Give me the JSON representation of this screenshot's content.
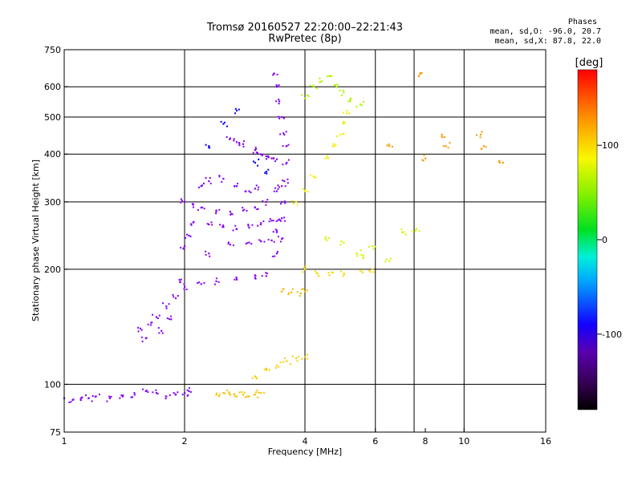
{
  "chart_data": {
    "type": "scatter",
    "title": "Tromsø 20160527 22:20:00–22:21:43",
    "subtitle": "RwPretec (8p)",
    "xlabel": "Frequency [MHz]",
    "ylabel": "Stationary phase Virtual Height [km]",
    "x_scale": "log",
    "y_scale": "log",
    "xlim": [
      1,
      16
    ],
    "ylim": [
      75,
      750
    ],
    "x_ticks": [
      1,
      2,
      4,
      6,
      8,
      10,
      16
    ],
    "x_tick_labels": [
      "1",
      "2",
      "4",
      "6",
      "8",
      "10",
      "16"
    ],
    "x_gridlines": [
      2,
      4,
      6,
      7.5,
      10
    ],
    "y_ticks": [
      75,
      100,
      200,
      300,
      400,
      500,
      600,
      750
    ],
    "y_tick_labels": [
      "75",
      "100",
      "200",
      "300",
      "400",
      "500",
      "600",
      "750"
    ],
    "y_gridlines": [
      100,
      200,
      300,
      400,
      500,
      600
    ],
    "grid": true,
    "colorbar": {
      "label": "[deg]",
      "range": [
        -180,
        180
      ],
      "ticks": [
        100,
        0,
        -100
      ],
      "tick_labels": [
        "100",
        "0",
        "-100"
      ]
    },
    "stats": {
      "header": "Phases",
      "o_mode": "mean, sd,O: -96.0, 20.7",
      "x_mode": "mean, sd,X:  87.8, 22.0"
    },
    "series": [
      {
        "mode": "O",
        "phase_deg": -110,
        "points": [
          [
            1.0,
            92
          ],
          [
            1.05,
            91
          ],
          [
            1.1,
            91
          ],
          [
            1.15,
            92
          ],
          [
            1.2,
            93
          ],
          [
            1.3,
            92
          ],
          [
            1.4,
            93
          ],
          [
            1.5,
            94
          ],
          [
            1.6,
            96
          ],
          [
            1.7,
            95
          ],
          [
            1.8,
            93
          ],
          [
            1.9,
            94
          ],
          [
            2.0,
            95
          ],
          [
            2.05,
            96
          ]
        ]
      },
      {
        "mode": "O",
        "phase_deg": -105,
        "points": [
          [
            1.55,
            140
          ],
          [
            1.6,
            132
          ],
          [
            1.65,
            145
          ],
          [
            1.7,
            150
          ],
          [
            1.75,
            138
          ],
          [
            1.8,
            160
          ],
          [
            1.85,
            148
          ],
          [
            1.9,
            168
          ],
          [
            1.95,
            185
          ],
          [
            2.0,
            230
          ],
          [
            2.05,
            245
          ]
        ]
      },
      {
        "mode": "O",
        "phase_deg": -115,
        "points": [
          [
            2.0,
            300
          ],
          [
            2.1,
            295
          ],
          [
            2.2,
            290
          ],
          [
            2.4,
            285
          ],
          [
            2.6,
            283
          ],
          [
            2.8,
            285
          ],
          [
            3.0,
            290
          ],
          [
            3.2,
            300
          ],
          [
            3.4,
            320
          ],
          [
            3.5,
            330
          ]
        ]
      },
      {
        "mode": "O",
        "phase_deg": -120,
        "points": [
          [
            2.1,
            265
          ],
          [
            2.3,
            262
          ],
          [
            2.5,
            258
          ],
          [
            2.7,
            255
          ],
          [
            2.9,
            257
          ],
          [
            3.1,
            262
          ],
          [
            3.3,
            268
          ],
          [
            3.5,
            272
          ]
        ]
      },
      {
        "mode": "O",
        "phase_deg": -115,
        "points": [
          [
            2.3,
            220
          ],
          [
            2.6,
            232
          ],
          [
            2.9,
            235
          ],
          [
            3.1,
            237
          ],
          [
            3.3,
            238
          ],
          [
            3.5,
            240
          ]
        ]
      },
      {
        "mode": "O",
        "phase_deg": -120,
        "points": [
          [
            2.0,
            180
          ],
          [
            2.2,
            183
          ],
          [
            2.4,
            186
          ],
          [
            2.7,
            188
          ],
          [
            3.0,
            190
          ],
          [
            3.2,
            192
          ]
        ]
      },
      {
        "mode": "O",
        "phase_deg": -110,
        "points": [
          [
            2.6,
            440
          ],
          [
            2.7,
            430
          ],
          [
            2.8,
            425
          ],
          [
            3.0,
            410
          ],
          [
            3.1,
            400
          ],
          [
            3.2,
            395
          ],
          [
            3.3,
            390
          ],
          [
            3.4,
            388
          ]
        ]
      },
      {
        "mode": "O",
        "phase_deg": -110,
        "points": [
          [
            3.35,
            650
          ],
          [
            3.4,
            600
          ],
          [
            3.45,
            550
          ],
          [
            3.5,
            500
          ],
          [
            3.55,
            450
          ],
          [
            3.6,
            420
          ],
          [
            3.6,
            380
          ],
          [
            3.55,
            340
          ],
          [
            3.5,
            300
          ],
          [
            3.45,
            270
          ],
          [
            3.4,
            250
          ],
          [
            3.4,
            220
          ]
        ]
      },
      {
        "mode": "O",
        "phase_deg": -100,
        "points": [
          [
            2.2,
            330
          ],
          [
            2.3,
            340
          ],
          [
            2.5,
            345
          ],
          [
            2.7,
            330
          ],
          [
            2.9,
            320
          ],
          [
            3.0,
            325
          ]
        ]
      },
      {
        "mode": "O",
        "phase_deg": -90,
        "points": [
          [
            2.3,
            420
          ],
          [
            2.5,
            480
          ],
          [
            2.7,
            520
          ],
          [
            3.0,
            380
          ],
          [
            3.2,
            360
          ]
        ]
      },
      {
        "mode": "X",
        "phase_deg": 105,
        "points": [
          [
            2.4,
            94
          ],
          [
            2.5,
            95
          ],
          [
            2.6,
            94
          ],
          [
            2.7,
            93
          ],
          [
            2.8,
            94
          ],
          [
            2.9,
            93
          ],
          [
            3.0,
            94
          ],
          [
            3.1,
            95
          ]
        ]
      },
      {
        "mode": "X",
        "phase_deg": 100,
        "points": [
          [
            3.0,
            105
          ],
          [
            3.2,
            110
          ],
          [
            3.4,
            112
          ],
          [
            3.6,
            115
          ],
          [
            3.8,
            117
          ],
          [
            4.0,
            118
          ]
        ]
      },
      {
        "mode": "X",
        "phase_deg": 110,
        "points": [
          [
            3.5,
            175
          ],
          [
            3.7,
            174
          ],
          [
            3.9,
            173
          ],
          [
            4.0,
            175
          ]
        ]
      },
      {
        "mode": "X",
        "phase_deg": 95,
        "points": [
          [
            4.0,
            200
          ],
          [
            4.3,
            195
          ],
          [
            4.6,
            193
          ],
          [
            5.0,
            195
          ],
          [
            5.5,
            198
          ],
          [
            5.9,
            200
          ]
        ]
      },
      {
        "mode": "X",
        "phase_deg": 90,
        "points": [
          [
            3.8,
            300
          ],
          [
            4.0,
            320
          ],
          [
            4.2,
            350
          ],
          [
            4.5,
            390
          ],
          [
            4.7,
            420
          ],
          [
            4.9,
            450
          ],
          [
            5.0,
            480
          ],
          [
            5.1,
            520
          ]
        ]
      },
      {
        "mode": "X",
        "phase_deg": 70,
        "points": [
          [
            4.0,
            560
          ],
          [
            4.2,
            600
          ],
          [
            4.4,
            620
          ],
          [
            4.6,
            640
          ],
          [
            4.8,
            600
          ],
          [
            5.0,
            580
          ],
          [
            5.2,
            560
          ],
          [
            5.5,
            540
          ]
        ]
      },
      {
        "mode": "X",
        "phase_deg": 80,
        "points": [
          [
            4.5,
            240
          ],
          [
            5.0,
            235
          ],
          [
            5.4,
            220
          ],
          [
            5.6,
            215
          ],
          [
            5.9,
            230
          ],
          [
            6.5,
            210
          ],
          [
            7.0,
            250
          ],
          [
            7.6,
            255
          ]
        ]
      },
      {
        "mode": "X",
        "phase_deg": 120,
        "points": [
          [
            6.5,
            420
          ],
          [
            8.0,
            390
          ],
          [
            8.8,
            450
          ],
          [
            9.0,
            420
          ],
          [
            11.0,
            450
          ],
          [
            11.2,
            420
          ],
          [
            12.5,
            380
          ],
          [
            7.7,
            640
          ]
        ]
      }
    ]
  }
}
